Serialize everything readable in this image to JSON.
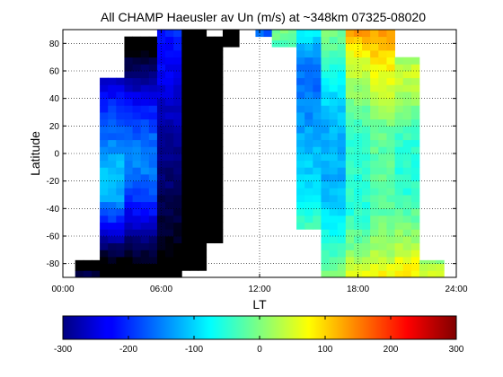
{
  "chart_data": {
    "type": "heatmap",
    "title": "All CHAMP Haeusler av Un (m/s) at ~348km 07325-08020",
    "xlabel": "LT",
    "ylabel": "Latitude",
    "xlim": [
      0,
      24
    ],
    "ylim": [
      -90,
      90
    ],
    "x_ticks": [
      "00:00",
      "06:00",
      "12:00",
      "18:00",
      "24:00"
    ],
    "y_ticks": [
      "80",
      "60",
      "40",
      "20",
      "0",
      "-20",
      "-40",
      "-60",
      "-80"
    ],
    "grid": true,
    "colormap": "jet",
    "colorbar": {
      "range": [
        -300,
        300
      ],
      "ticks": [
        "-300",
        "-200",
        "-100",
        "0",
        "100",
        "200",
        "300"
      ],
      "placement": "bottom"
    },
    "cell_size": {
      "lt_hours": 0.5,
      "latitude_deg": 5
    },
    "swaths": [
      {
        "lt": [
          0.75,
          2.75
        ],
        "lat": [
          -90,
          -77.5
        ],
        "profile": [
          -160,
          -180,
          -200,
          -220,
          -240,
          -260,
          -270,
          -280
        ]
      },
      {
        "lt": [
          2.25,
          4.25
        ],
        "lat": [
          -90,
          55
        ],
        "profile": [
          -260,
          -250,
          -230,
          -200,
          -170,
          -140,
          -110,
          -80,
          -50,
          -20,
          0,
          20,
          30,
          40,
          40,
          40,
          30,
          20,
          10,
          0,
          -10,
          -20,
          -30,
          -40,
          -50,
          -60,
          -80,
          -100,
          -120
        ]
      },
      {
        "lt": [
          3.75,
          5.75
        ],
        "lat": [
          -90,
          85
        ],
        "profile": [
          -250,
          -240,
          -220,
          -200,
          -180,
          -160,
          -140,
          -120,
          -100,
          -80,
          -60,
          -45,
          -30,
          -20,
          -10,
          0,
          0,
          0,
          -5,
          -10,
          -20,
          -30,
          -40,
          -50,
          -60,
          -80,
          -100,
          -120,
          -140,
          -160,
          -180,
          -200,
          -220,
          -240,
          -250
        ]
      },
      {
        "lt": [
          5.75,
          7.25
        ],
        "lat": [
          -90,
          90
        ],
        "profile": [
          -250,
          -250,
          -240,
          -230,
          -220,
          -210,
          -200,
          -195,
          -190,
          -185,
          -180,
          -175,
          -170,
          -165,
          -160,
          -155,
          -150,
          -145,
          -140,
          -135,
          -130,
          -125,
          -120,
          -115,
          -110,
          -105,
          -100,
          -95,
          -90,
          -85,
          -80,
          -75,
          -70,
          -65,
          -60,
          -50
        ]
      },
      {
        "lt": [
          7.25,
          8.75
        ],
        "lat": [
          -85,
          90
        ],
        "profile": [
          -290,
          -285,
          -280,
          -280,
          -275,
          -275,
          -270,
          -270,
          -270,
          -265,
          -265,
          -265,
          -260,
          -260,
          -260,
          -255,
          -255,
          -255,
          -250,
          -250,
          -250,
          -250,
          -250,
          -250,
          -250,
          -255,
          -255,
          -260,
          -260,
          -265,
          -270,
          -270,
          -275,
          -280,
          -285
        ]
      },
      {
        "lt": [
          8.75,
          9.75
        ],
        "lat": [
          -65,
          85
        ],
        "profile": [
          -240,
          -240,
          -250,
          -250,
          -260,
          -260,
          -260,
          -270,
          -270,
          -270,
          -270,
          -270,
          -260,
          -260,
          -260,
          -260,
          -250,
          -250,
          -250,
          -250,
          -250,
          -250,
          -250,
          -250,
          -250,
          -260,
          -260,
          -260,
          -270,
          -280
        ]
      },
      {
        "lt": [
          9.75,
          10.75
        ],
        "lat": [
          77.5,
          90
        ],
        "profile": [
          -280,
          -290,
          -300
        ]
      },
      {
        "lt": [
          11.75,
          12.75
        ],
        "lat": [
          85,
          90
        ],
        "profile": [
          -20
        ]
      },
      {
        "lt": [
          12.75,
          14.25
        ],
        "lat": [
          77.5,
          90
        ],
        "profile": [
          120,
          130,
          140
        ]
      },
      {
        "lt": [
          14.25,
          15.75
        ],
        "lat": [
          -55,
          90
        ],
        "profile": [
          120,
          110,
          100,
          90,
          80,
          70,
          60,
          55,
          50,
          45,
          40,
          35,
          30,
          25,
          20,
          15,
          10,
          5,
          0,
          -5,
          -10,
          -10,
          -5,
          0,
          10,
          20,
          40,
          60,
          80
        ]
      },
      {
        "lt": [
          15.75,
          17.25
        ],
        "lat": [
          -90,
          90
        ],
        "profile": [
          150,
          140,
          130,
          120,
          110,
          100,
          90,
          80,
          70,
          60,
          50,
          45,
          40,
          35,
          30,
          30,
          30,
          30,
          30,
          30,
          30,
          30,
          35,
          40,
          45,
          50,
          60,
          70,
          80,
          90,
          100,
          110,
          120,
          130,
          140,
          150
        ]
      },
      {
        "lt": [
          17.25,
          18.75
        ],
        "lat": [
          -90,
          90
        ],
        "profile": [
          220,
          210,
          190,
          170,
          150,
          140,
          130,
          120,
          110,
          100,
          100,
          100,
          100,
          100,
          100,
          100,
          100,
          100,
          100,
          100,
          100,
          110,
          120,
          130,
          140,
          150,
          160,
          170,
          180,
          190,
          200,
          210,
          230,
          250,
          270,
          290
        ]
      },
      {
        "lt": [
          18.75,
          20.25
        ],
        "lat": [
          -90,
          90
        ],
        "profile": [
          230,
          220,
          200,
          180,
          170,
          160,
          150,
          145,
          140,
          135,
          130,
          130,
          130,
          130,
          130,
          130,
          130,
          130,
          130,
          130,
          135,
          140,
          150,
          160,
          170,
          180,
          190,
          200,
          210,
          220,
          230,
          240,
          250,
          260,
          270,
          280
        ]
      },
      {
        "lt": [
          20.25,
          21.75
        ],
        "lat": [
          -90,
          70
        ],
        "profile": [
          240,
          230,
          220,
          200,
          180,
          170,
          160,
          150,
          140,
          130,
          120,
          110,
          100,
          100,
          100,
          100,
          100,
          100,
          100,
          100,
          110,
          120,
          130,
          140,
          150,
          160,
          170,
          180,
          190,
          200,
          190,
          140
        ]
      },
      {
        "lt": [
          21.75,
          23.25
        ],
        "lat": [
          -90,
          -77.5
        ],
        "profile": [
          180,
          200,
          220,
          220,
          200,
          180,
          160,
          150
        ]
      }
    ]
  }
}
